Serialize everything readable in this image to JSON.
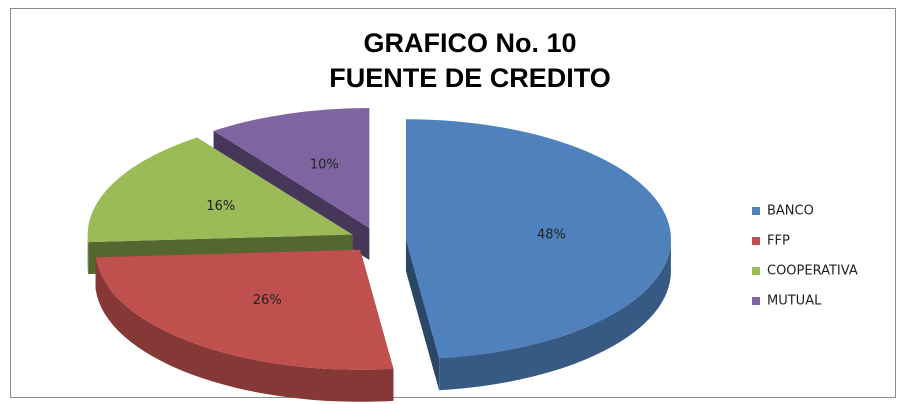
{
  "chart_data": {
    "type": "pie",
    "title": "GRAFICO No. 10",
    "subtitle": "FUENTE DE CREDITO",
    "categories": [
      "BANCO",
      "FFP",
      "COOPERATIVA",
      "MUTUAL"
    ],
    "values": [
      48,
      26,
      16,
      10
    ],
    "value_labels": [
      "48%",
      "26%",
      "16%",
      "10%"
    ],
    "colors": [
      "#4f81bd",
      "#c0504d",
      "#9bbb59",
      "#8064a2"
    ],
    "legend": "right"
  }
}
